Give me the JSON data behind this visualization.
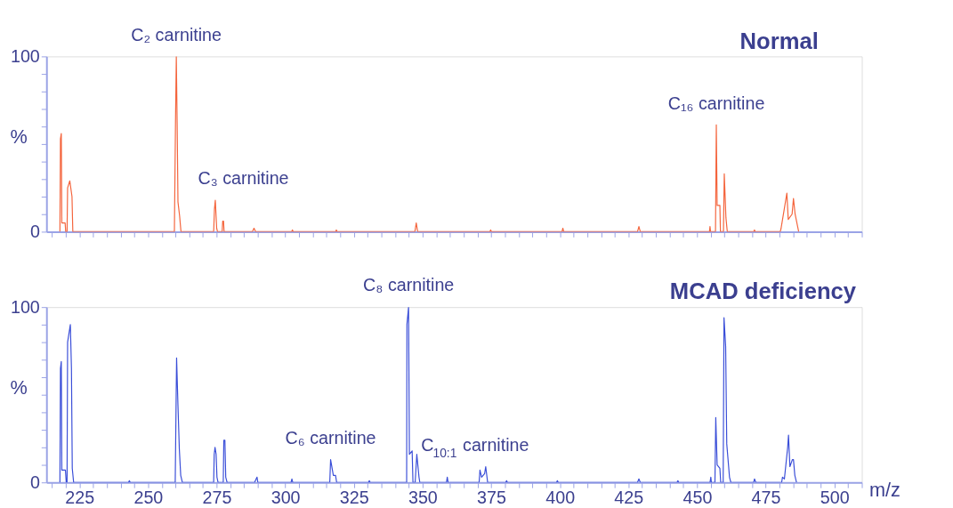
{
  "chart_data": [
    {
      "type": "line",
      "title": "Normal",
      "ylabel": "%",
      "x": [
        217.9,
        218.1,
        218.4,
        218.6,
        219.8,
        220.0,
        220.5,
        220.7,
        221.5,
        222.3,
        222.6,
        259.6,
        260.0,
        260.3,
        260.6,
        260.9,
        261.5,
        262.0,
        273.9,
        274.2,
        274.5,
        275.0,
        275.3,
        277.0,
        277.2,
        277.5,
        277.7,
        288.0,
        288.6,
        289.2,
        302.3,
        302.6,
        302.9,
        318.3,
        318.6,
        318.9,
        347.2,
        347.7,
        348.2,
        374.5,
        374.8,
        375.1,
        400.8,
        401.1,
        401.4,
        428.3,
        428.8,
        429.3,
        454.5,
        454.7,
        454.9,
        456.7,
        457.0,
        457.3,
        458.3,
        458.5,
        459.6,
        459.9,
        460.5,
        461.0,
        470.6,
        470.9,
        471.2,
        480.3,
        480.6,
        482.7,
        483.2,
        484.6,
        485.1,
        485.7,
        487.0
      ],
      "series": [
        {
          "color": "#f4643c",
          "values": [
            0,
            53,
            56,
            5,
            5,
            0,
            0,
            25,
            29,
            20,
            0,
            0,
            62,
            100,
            62,
            17,
            9,
            0,
            0,
            13,
            18,
            2,
            0,
            0,
            6,
            6,
            0,
            0,
            2,
            0,
            0,
            1,
            0,
            0,
            1,
            0,
            0,
            5,
            0,
            0,
            1,
            0,
            0,
            2,
            0,
            0,
            3,
            0,
            0,
            3,
            0,
            0,
            61,
            15,
            15,
            0,
            0,
            33,
            8,
            0,
            0,
            1,
            0,
            0,
            2,
            22,
            7,
            10,
            19,
            10,
            0
          ]
        }
      ],
      "xlim": [
        213,
        510
      ],
      "xticks": [
        {
          "value": 215,
          "label": null
        },
        {
          "value": 220,
          "label": null
        },
        225,
        {
          "value": 230,
          "label": null
        },
        {
          "value": 235,
          "label": null
        },
        {
          "value": 240,
          "label": null
        },
        {
          "value": 245,
          "label": null
        },
        250,
        {
          "value": 255,
          "label": null
        },
        {
          "value": 260,
          "label": null
        },
        {
          "value": 265,
          "label": null
        },
        {
          "value": 270,
          "label": null
        },
        275,
        {
          "value": 280,
          "label": null
        },
        {
          "value": 285,
          "label": null
        },
        {
          "value": 290,
          "label": null
        },
        {
          "value": 295,
          "label": null
        },
        300,
        {
          "value": 305,
          "label": null
        },
        {
          "value": 310,
          "label": null
        },
        {
          "value": 315,
          "label": null
        },
        {
          "value": 320,
          "label": null
        },
        325,
        {
          "value": 330,
          "label": null
        },
        {
          "value": 335,
          "label": null
        },
        {
          "value": 340,
          "label": null
        },
        {
          "value": 345,
          "label": null
        },
        350,
        {
          "value": 355,
          "label": null
        },
        {
          "value": 360,
          "label": null
        },
        {
          "value": 365,
          "label": null
        },
        {
          "value": 370,
          "label": null
        },
        375,
        {
          "value": 380,
          "label": null
        },
        {
          "value": 385,
          "label": null
        },
        {
          "value": 390,
          "label": null
        },
        {
          "value": 395,
          "label": null
        },
        400,
        {
          "value": 405,
          "label": null
        },
        {
          "value": 410,
          "label": null
        },
        {
          "value": 415,
          "label": null
        },
        {
          "value": 420,
          "label": null
        },
        425,
        {
          "value": 430,
          "label": null
        },
        {
          "value": 435,
          "label": null
        },
        {
          "value": 440,
          "label": null
        },
        {
          "value": 445,
          "label": null
        },
        450,
        {
          "value": 455,
          "label": null
        },
        {
          "value": 460,
          "label": null
        },
        {
          "value": 465,
          "label": null
        },
        {
          "value": 470,
          "label": null
        },
        475,
        {
          "value": 480,
          "label": null
        },
        {
          "value": 485,
          "label": null
        },
        {
          "value": 490,
          "label": null
        },
        {
          "value": 495,
          "label": null
        },
        500,
        {
          "value": 505,
          "label": null
        },
        {
          "value": 510,
          "label": null
        }
      ],
      "ylim": [
        0,
        100
      ],
      "yticks": [
        0,
        {
          "value": 10,
          "label": null
        },
        {
          "value": 20,
          "label": null
        },
        {
          "value": 30,
          "label": null
        },
        {
          "value": 40,
          "label": null
        },
        {
          "value": 50,
          "label": null
        },
        {
          "value": 60,
          "label": null
        },
        {
          "value": 70,
          "label": null
        },
        {
          "value": 80,
          "label": null
        },
        {
          "value": 90,
          "label": null
        },
        100
      ],
      "tick_labels": "y",
      "annotations": [
        {
          "text": "C₂ carnitine",
          "x": 260.3,
          "y": 100
        },
        {
          "text": "C₃ carnitine",
          "x": 274.5,
          "y": 18
        },
        {
          "text": "C₁₆ carnitine",
          "x": 457.0,
          "y": 61
        }
      ]
    },
    {
      "type": "line",
      "title": "MCAD deficiency",
      "ylabel": "%",
      "xlabel": "m/z",
      "x": [
        217.9,
        218.1,
        218.4,
        218.6,
        219.9,
        220.2,
        220.5,
        220.7,
        221.7,
        222.1,
        222.4,
        222.9,
        242.9,
        243.2,
        243.5,
        259.9,
        260.4,
        260.9,
        261.4,
        261.9,
        262.5,
        273.9,
        274.1,
        274.4,
        274.8,
        275.1,
        275.5,
        277.4,
        277.6,
        278.0,
        278.3,
        278.8,
        288.8,
        289.7,
        290.0,
        302.1,
        302.4,
        302.7,
        316.2,
        316.5,
        317.5,
        318.3,
        318.7,
        330.3,
        330.6,
        330.9,
        344.2,
        344.3,
        344.9,
        345.2,
        346.2,
        346.5,
        347.3,
        347.9,
        348.7,
        349.0,
        358.7,
        359.0,
        359.3,
        370.6,
        370.9,
        371.5,
        372.6,
        373.0,
        373.7,
        380.3,
        380.6,
        380.9,
        398.8,
        399.1,
        399.4,
        428.3,
        428.8,
        429.3,
        442.7,
        443.0,
        443.3,
        454.7,
        455.0,
        455.2,
        456.5,
        456.8,
        457.3,
        458.3,
        458.6,
        459.5,
        459.8,
        460.4,
        460.8,
        461.8,
        462.3,
        470.6,
        470.9,
        471.4,
        480.8,
        481.1,
        481.8,
        483.0,
        483.3,
        483.8,
        484.7,
        485.1,
        485.6,
        486.2
      ],
      "series": [
        {
          "color": "#3a4ed8",
          "values": [
            0,
            65,
            69,
            7,
            7,
            0,
            0,
            80,
            90,
            65,
            8,
            0,
            0,
            1,
            0,
            0,
            71,
            44,
            19,
            4,
            0,
            0,
            16,
            20,
            16,
            3,
            0,
            0,
            24,
            24,
            3,
            0,
            0,
            3,
            0,
            0,
            2,
            0,
            0,
            13,
            4,
            4,
            0,
            0,
            1,
            0,
            0,
            90,
            100,
            16,
            18,
            0,
            0,
            16,
            3,
            0,
            0,
            3,
            0,
            0,
            7,
            3,
            5,
            9,
            0,
            0,
            1,
            0,
            0,
            1,
            0,
            0,
            2,
            0,
            0,
            1,
            0,
            0,
            3,
            0,
            0,
            37,
            10,
            8,
            0,
            0,
            94,
            77.5,
            22,
            3,
            0,
            0,
            2,
            0,
            0,
            3,
            2,
            20,
            27,
            9,
            13,
            13,
            4,
            0
          ]
        }
      ],
      "xlim": [
        213,
        510
      ],
      "xticks": [
        {
          "value": 215,
          "label": null
        },
        {
          "value": 220,
          "label": null
        },
        225,
        {
          "value": 230,
          "label": null
        },
        {
          "value": 235,
          "label": null
        },
        {
          "value": 240,
          "label": null
        },
        {
          "value": 245,
          "label": null
        },
        250,
        {
          "value": 255,
          "label": null
        },
        {
          "value": 260,
          "label": null
        },
        {
          "value": 265,
          "label": null
        },
        {
          "value": 270,
          "label": null
        },
        275,
        {
          "value": 280,
          "label": null
        },
        {
          "value": 285,
          "label": null
        },
        {
          "value": 290,
          "label": null
        },
        {
          "value": 295,
          "label": null
        },
        300,
        {
          "value": 305,
          "label": null
        },
        {
          "value": 310,
          "label": null
        },
        {
          "value": 315,
          "label": null
        },
        {
          "value": 320,
          "label": null
        },
        325,
        {
          "value": 330,
          "label": null
        },
        {
          "value": 335,
          "label": null
        },
        {
          "value": 340,
          "label": null
        },
        {
          "value": 345,
          "label": null
        },
        350,
        {
          "value": 355,
          "label": null
        },
        {
          "value": 360,
          "label": null
        },
        {
          "value": 365,
          "label": null
        },
        {
          "value": 370,
          "label": null
        },
        375,
        {
          "value": 380,
          "label": null
        },
        {
          "value": 385,
          "label": null
        },
        {
          "value": 390,
          "label": null
        },
        {
          "value": 395,
          "label": null
        },
        400,
        {
          "value": 405,
          "label": null
        },
        {
          "value": 410,
          "label": null
        },
        {
          "value": 415,
          "label": null
        },
        {
          "value": 420,
          "label": null
        },
        425,
        {
          "value": 430,
          "label": null
        },
        {
          "value": 435,
          "label": null
        },
        {
          "value": 440,
          "label": null
        },
        {
          "value": 445,
          "label": null
        },
        450,
        {
          "value": 455,
          "label": null
        },
        {
          "value": 460,
          "label": null
        },
        {
          "value": 465,
          "label": null
        },
        {
          "value": 470,
          "label": null
        },
        475,
        {
          "value": 480,
          "label": null
        },
        {
          "value": 485,
          "label": null
        },
        {
          "value": 490,
          "label": null
        },
        {
          "value": 495,
          "label": null
        },
        500,
        {
          "value": 505,
          "label": null
        },
        {
          "value": 510,
          "label": null
        }
      ],
      "ylim": [
        0,
        100
      ],
      "yticks": [
        0,
        {
          "value": 10,
          "label": null
        },
        {
          "value": 20,
          "label": null
        },
        {
          "value": 30,
          "label": null
        },
        {
          "value": 40,
          "label": null
        },
        {
          "value": 50,
          "label": null
        },
        {
          "value": 60,
          "label": null
        },
        {
          "value": 70,
          "label": null
        },
        {
          "value": 80,
          "label": null
        },
        {
          "value": 90,
          "label": null
        },
        100
      ],
      "annotations": [
        {
          "text": "C₆ carnitine",
          "x": 316.5,
          "y": 13
        },
        {
          "text": "C₈ carnitine",
          "x": 344.9,
          "y": 100
        },
        {
          "text": "C$_{10:1}$ carnitine",
          "x": 373.0,
          "y": 9
        }
      ]
    }
  ]
}
